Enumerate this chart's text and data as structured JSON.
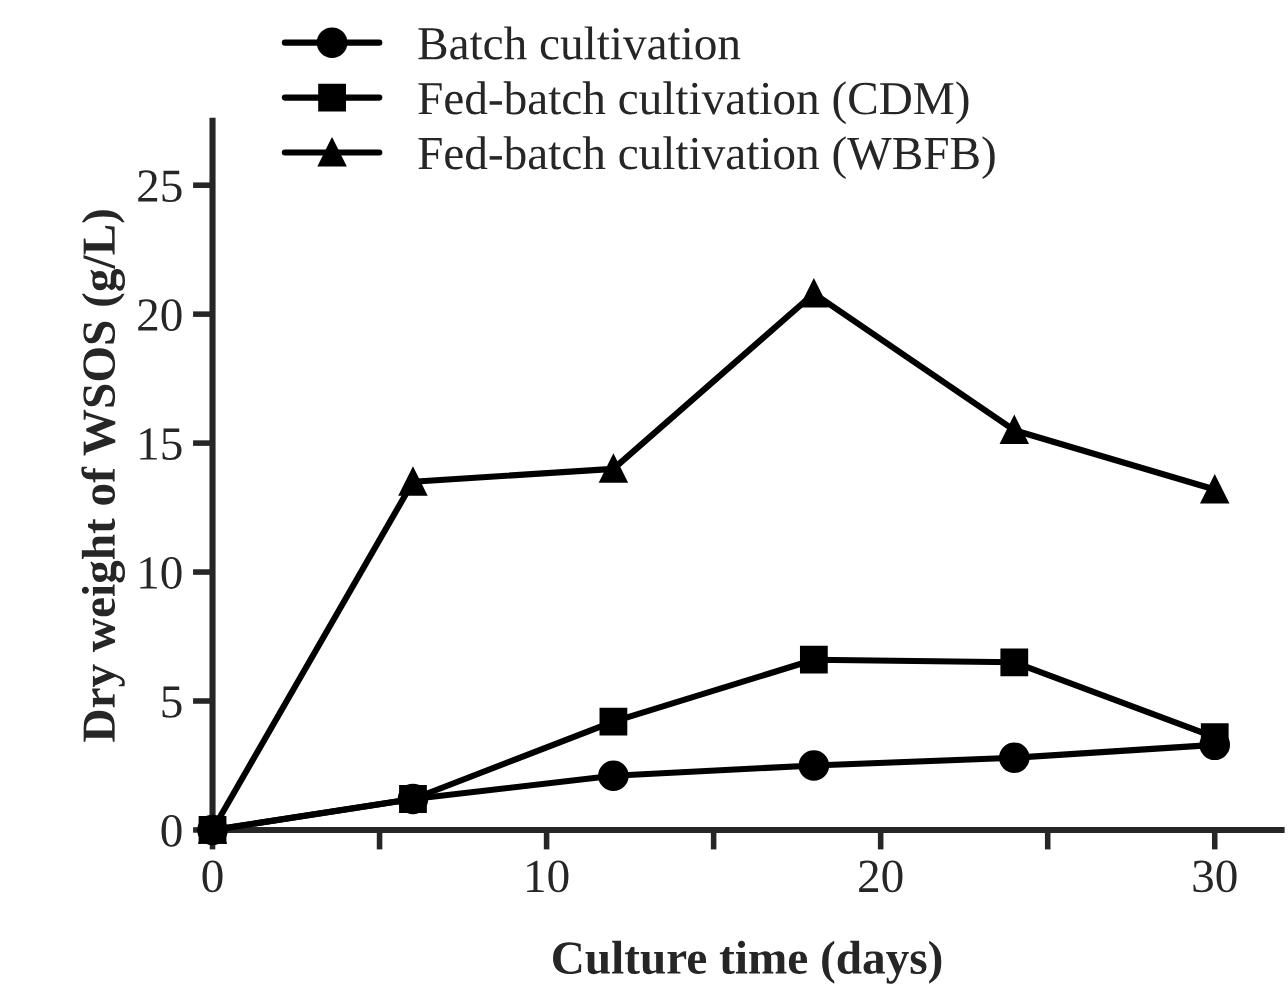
{
  "chart_data": {
    "type": "line",
    "xlabel": "Culture time (days)",
    "ylabel": "Dry weight of WSOS (g/L)",
    "x": [
      0,
      6,
      12,
      18,
      24,
      30
    ],
    "series": [
      {
        "name": "Batch cultivation",
        "color": "#000000",
        "marker": "circle",
        "values": [
          0,
          1.2,
          2.1,
          2.5,
          2.8,
          3.3
        ]
      },
      {
        "name": "Fed-batch cultivation (CDM)",
        "color": "#000000",
        "marker": "square",
        "values": [
          0,
          1.2,
          4.2,
          6.6,
          6.5,
          3.6
        ]
      },
      {
        "name": "Fed-batch cultivation (WBFB)",
        "color": "#000000",
        "marker": "triangle",
        "values": [
          0,
          13.5,
          14.0,
          20.8,
          15.5,
          13.2
        ]
      }
    ],
    "xlim": [
      0,
      32
    ],
    "xticks": [
      0,
      {
        "value": 5,
        "label": null
      },
      10,
      {
        "value": 15,
        "label": null
      },
      20,
      {
        "value": 25,
        "label": null
      },
      30
    ],
    "ylim": [
      0,
      27.5
    ],
    "yticks": [
      0,
      5,
      10,
      15,
      20,
      25
    ],
    "grid": false,
    "legend": "top left",
    "line_style": "solid"
  }
}
